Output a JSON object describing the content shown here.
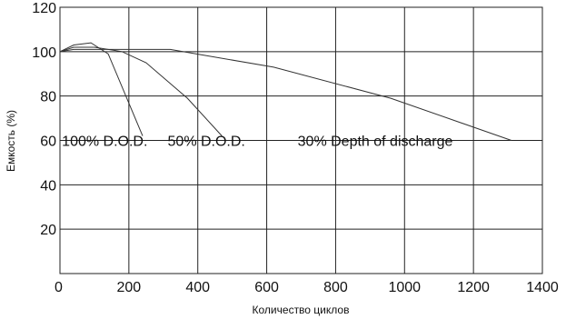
{
  "chart_data": {
    "type": "line",
    "title": "",
    "xlabel": "Количество циклов",
    "ylabel": "Емкость (%)",
    "xlim": [
      0,
      1400
    ],
    "ylim": [
      0,
      120
    ],
    "grid": true,
    "x_ticks": [
      0,
      200,
      400,
      600,
      800,
      1000,
      1200,
      1400
    ],
    "x_tick_labels": [
      "0",
      "200",
      "400",
      "600",
      "800",
      "1000",
      "1200",
      "1400"
    ],
    "y_ticks": [
      20,
      40,
      60,
      80,
      100,
      120
    ],
    "y_tick_labels": [
      "20",
      "40",
      "60",
      "80",
      "100",
      "120"
    ],
    "series": [
      {
        "name": "100% D.O.D.",
        "x": [
          0,
          40,
          90,
          140,
          240
        ],
        "y": [
          100,
          103,
          104,
          99,
          62
        ]
      },
      {
        "name": "50% D.O.D.",
        "x": [
          0,
          40,
          100,
          180,
          250,
          370,
          470
        ],
        "y": [
          100,
          102,
          102,
          100,
          95,
          79,
          62
        ]
      },
      {
        "name": "30% Depth of discharge",
        "x": [
          0,
          40,
          320,
          620,
          960,
          1310
        ],
        "y": [
          100,
          101,
          101,
          93,
          79,
          60
        ]
      }
    ]
  }
}
